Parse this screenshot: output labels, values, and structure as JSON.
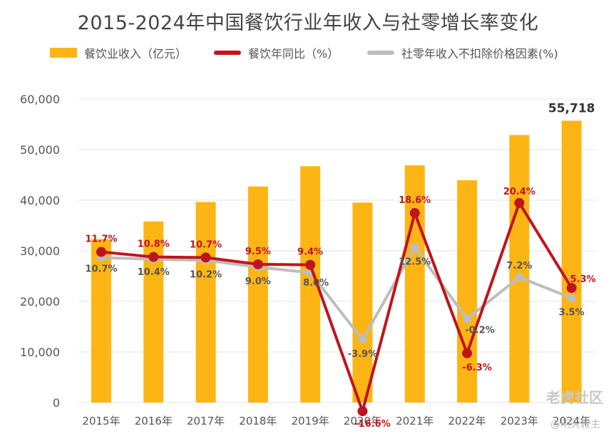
{
  "chart_data": {
    "type": "bar",
    "title": "2015-2024年中国餐饮行业年收入与社零增长率变化",
    "categories": [
      "2015年",
      "2016年",
      "2017年",
      "2018年",
      "2019年",
      "2020年",
      "2021年",
      "2022年",
      "2023年",
      "2024年"
    ],
    "series": [
      {
        "name": "餐饮业收入（亿元）",
        "type": "bar",
        "color": "#FDB515",
        "values": [
          32310,
          35799,
          39644,
          42716,
          46721,
          39527,
          46895,
          43941,
          52890,
          55718
        ]
      },
      {
        "name": "餐饮年同比（%）",
        "type": "line",
        "color": "#C0141C",
        "values": [
          11.7,
          10.8,
          10.7,
          9.5,
          9.4,
          -16.6,
          18.6,
          -6.3,
          20.4,
          5.3
        ],
        "labels": [
          "11.7%",
          "10.8%",
          "10.7%",
          "9.5%",
          "9.4%",
          "-16.6%",
          "18.6%",
          "-6.3%",
          "20.4%",
          "5.3%"
        ]
      },
      {
        "name": "社零年收入不扣除价格因素(%)",
        "type": "line",
        "color": "#BDBDBD",
        "values": [
          10.7,
          10.4,
          10.2,
          9.0,
          8.0,
          -3.9,
          12.5,
          -0.2,
          7.2,
          3.5
        ],
        "labels": [
          "10.7%",
          "10.4%",
          "10.2%",
          "9.0%",
          "8.0%",
          "-3.9%",
          "12.5%",
          "-0.2%",
          "7.2%",
          "3.5%"
        ]
      }
    ],
    "bar_label": "55,718",
    "yticks": [
      "0",
      "10,000",
      "20,000",
      "30,000",
      "40,000",
      "50,000",
      "60,000"
    ],
    "ylim": [
      0,
      60000
    ],
    "pct_ylim": [
      -20,
      30
    ],
    "grid": true,
    "legend_position": "top"
  },
  "watermark": "老虎社区",
  "watermark_sub": "@明天教主"
}
